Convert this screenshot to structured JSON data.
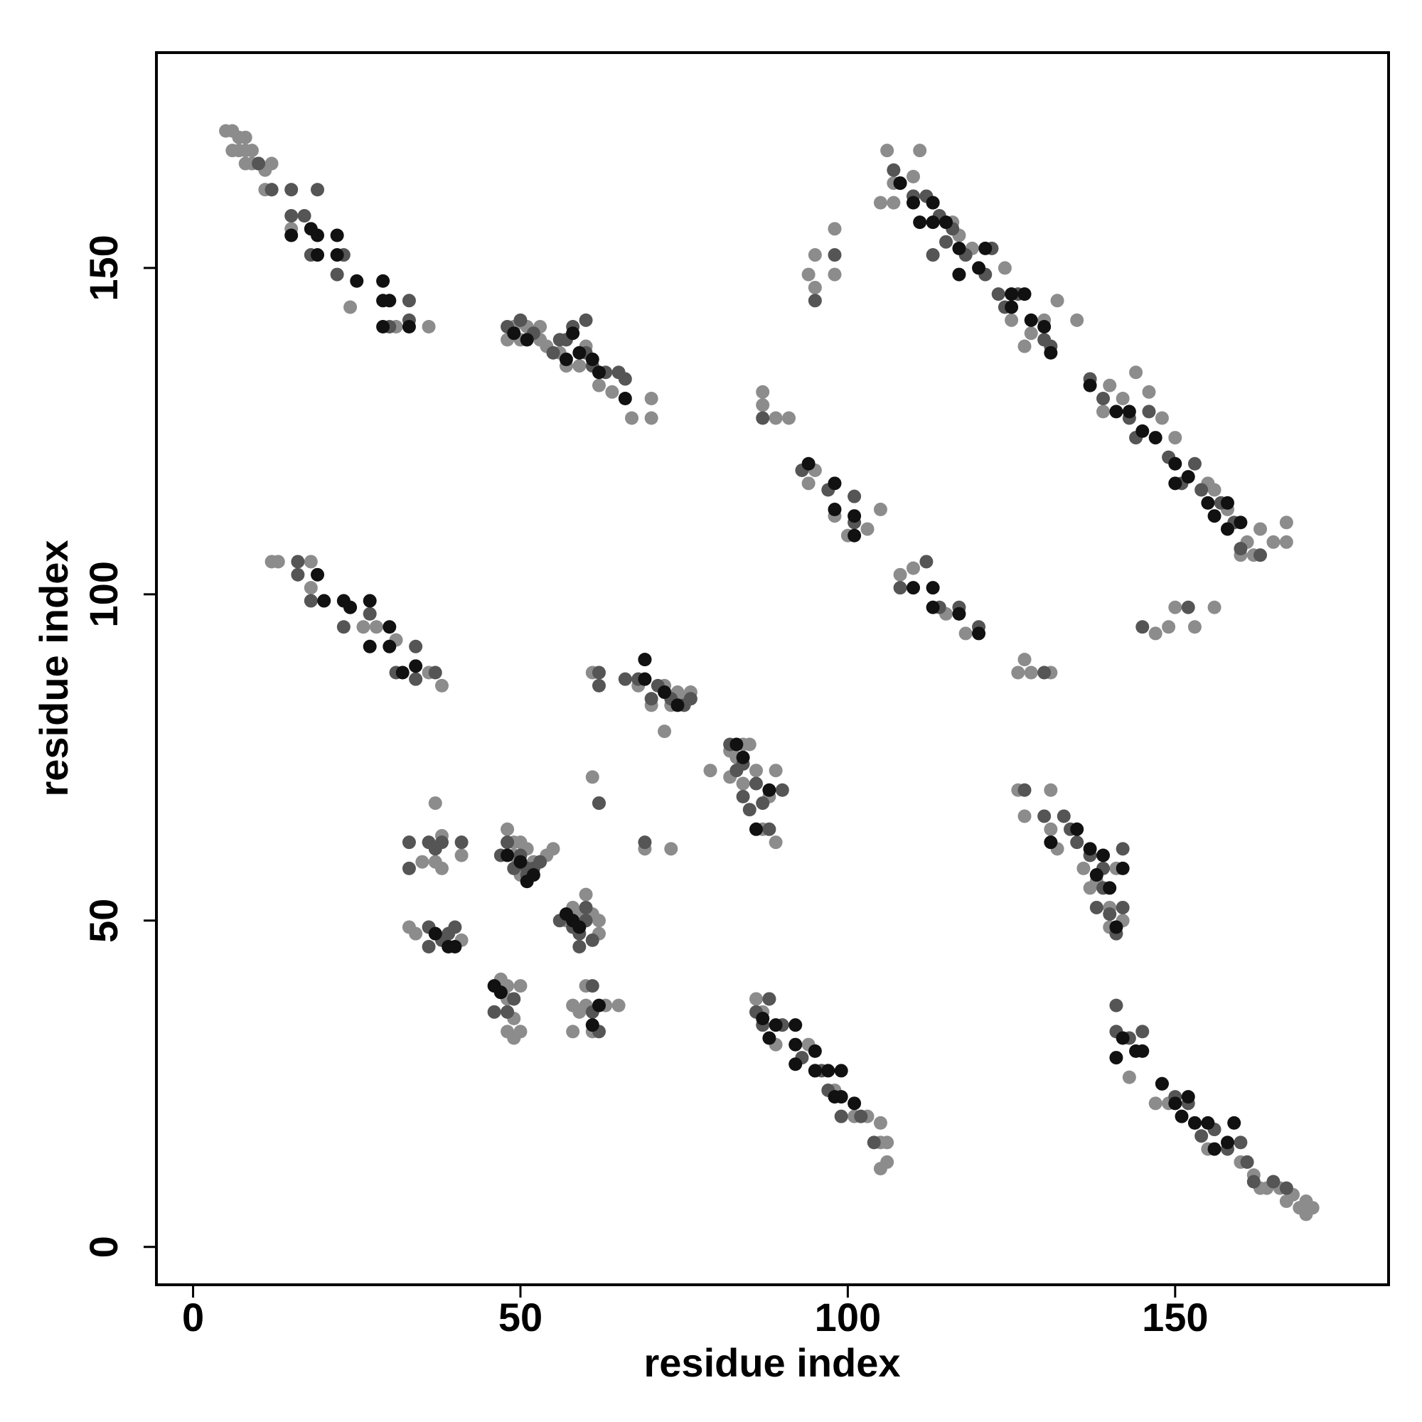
{
  "chart_data": {
    "type": "scatter",
    "x_label": "residue index",
    "y_label": "residue index",
    "xlim": [
      -5.6,
      182.6
    ],
    "ylim": [
      -5.8,
      183
    ],
    "xticks": [
      0,
      50,
      100,
      150
    ],
    "yticks": [
      0,
      50,
      100,
      150
    ],
    "grid": false,
    "series": [
      {
        "color": "#8c8c8c",
        "x": [
          5,
          6,
          7,
          8,
          6,
          7,
          8,
          9,
          10,
          11,
          12,
          8,
          11,
          15,
          24,
          31,
          36,
          9,
          12,
          48,
          49,
          51,
          53,
          53,
          54,
          56,
          57,
          59,
          60,
          62,
          64,
          67,
          70,
          70,
          50,
          106,
          107,
          105,
          107,
          111,
          110,
          113,
          116,
          117,
          119,
          124,
          125,
          128,
          130,
          132,
          135,
          140,
          142,
          144,
          146,
          148,
          150,
          155,
          158,
          161,
          163,
          165,
          167,
          167,
          160,
          162,
          156,
          139,
          127,
          94,
          98,
          100,
          103,
          105,
          110,
          115,
          118,
          95,
          108,
          94,
          95,
          95,
          98,
          98,
          87,
          87,
          89,
          91,
          147,
          149,
          150,
          153,
          156,
          127,
          128,
          131,
          126,
          12,
          13,
          18,
          18,
          28,
          31,
          36,
          38,
          26,
          61,
          69,
          72,
          74,
          75,
          76,
          70,
          72,
          68,
          73,
          79,
          82,
          84,
          85,
          83,
          86,
          88,
          89,
          87,
          89,
          82,
          84,
          126,
          127,
          131,
          131,
          132,
          136,
          138,
          140,
          140,
          142,
          137,
          141,
          33,
          34,
          35,
          37,
          37,
          38,
          38,
          41,
          37,
          41,
          48,
          49,
          50,
          51,
          52,
          54,
          55,
          49,
          50,
          60,
          58,
          59,
          60,
          61,
          62,
          62,
          57,
          61,
          62,
          69,
          73,
          65,
          47,
          48,
          50,
          48,
          49,
          50,
          49,
          48,
          58,
          58,
          59,
          60,
          60,
          61,
          63,
          86,
          87,
          88,
          89,
          94,
          95,
          98,
          101,
          103,
          105,
          105,
          105,
          106,
          106,
          143,
          147,
          149,
          153,
          155,
          160,
          162,
          163,
          164,
          166,
          167,
          168,
          170,
          171,
          170,
          169
        ],
        "values": [
          171,
          171,
          170,
          170,
          168,
          168,
          168,
          166,
          166,
          165,
          166,
          166,
          162,
          156,
          144,
          141,
          141,
          168,
          162,
          139,
          141,
          141,
          141,
          139,
          138,
          137,
          135,
          135,
          138,
          132,
          131,
          127,
          130,
          127,
          139,
          168,
          163,
          160,
          160,
          168,
          164,
          160,
          157,
          155,
          153,
          150,
          142,
          140,
          142,
          145,
          142,
          132,
          130,
          134,
          131,
          127,
          124,
          117,
          113,
          108,
          110,
          108,
          108,
          111,
          106,
          106,
          116,
          128,
          138,
          117,
          112,
          109,
          110,
          113,
          104,
          97,
          94,
          119,
          103,
          149,
          152,
          147,
          149,
          156,
          131,
          129,
          127,
          127,
          94,
          95,
          98,
          95,
          98,
          90,
          88,
          88,
          88,
          105,
          105,
          105,
          101,
          95,
          93,
          88,
          86,
          95,
          88,
          90,
          86,
          85,
          84,
          85,
          83,
          79,
          86,
          83,
          73,
          76,
          77,
          77,
          75,
          73,
          69,
          73,
          64,
          62,
          72,
          71,
          70,
          66,
          64,
          70,
          61,
          58,
          56,
          52,
          49,
          50,
          55,
          58,
          49,
          48,
          59,
          59,
          68,
          63,
          58,
          60,
          48,
          47,
          64,
          62,
          62,
          61,
          59,
          60,
          61,
          60,
          57,
          54,
          52,
          51,
          50,
          51,
          50,
          48,
          50,
          72,
          68,
          61,
          61,
          37,
          41,
          40,
          40,
          33,
          32,
          33,
          35,
          38,
          37,
          33,
          36,
          40,
          37,
          33,
          37,
          38,
          36,
          38,
          31,
          31,
          27,
          24,
          20,
          20,
          16,
          19,
          12,
          13,
          16,
          26,
          22,
          22,
          19,
          15,
          13,
          11,
          9,
          9,
          9,
          7,
          8,
          7,
          6,
          5,
          6
        ]
      },
      {
        "color": "#555555",
        "x": [
          10,
          12,
          15,
          15,
          19,
          18,
          22,
          33,
          33,
          30,
          17,
          23,
          48,
          50,
          52,
          55,
          57,
          58,
          60,
          61,
          63,
          65,
          66,
          60,
          56,
          107,
          108,
          110,
          112,
          114,
          115,
          116,
          118,
          121,
          123,
          124,
          126,
          130,
          131,
          137,
          139,
          143,
          144,
          146,
          149,
          151,
          153,
          154,
          157,
          159,
          160,
          163,
          122,
          113,
          93,
          97,
          101,
          101,
          112,
          114,
          117,
          120,
          108,
          95,
          98,
          87,
          130,
          145,
          152,
          16,
          16,
          18,
          23,
          27,
          31,
          34,
          34,
          37,
          24,
          62,
          62,
          66,
          68,
          71,
          73,
          75,
          76,
          70,
          82,
          83,
          84,
          86,
          87,
          88,
          85,
          84,
          90,
          127,
          130,
          133,
          134,
          135,
          137,
          139,
          139,
          140,
          142,
          142,
          138,
          141,
          33,
          33,
          36,
          37,
          36,
          36,
          38,
          39,
          40,
          41,
          38,
          47,
          48,
          49,
          50,
          51,
          52,
          53,
          51,
          56,
          58,
          59,
          59,
          60,
          61,
          60,
          62,
          69,
          46,
          47,
          48,
          49,
          61,
          61,
          62,
          86,
          87,
          90,
          93,
          96,
          97,
          99,
          102,
          104,
          88,
          141,
          141,
          143,
          148,
          150,
          152,
          154,
          156,
          158,
          160,
          161,
          162,
          165,
          167,
          145
        ],
        "values": [
          166,
          162,
          162,
          158,
          162,
          152,
          149,
          145,
          142,
          141,
          158,
          152,
          141,
          142,
          140,
          137,
          139,
          141,
          137,
          135,
          134,
          134,
          133,
          142,
          139,
          165,
          163,
          161,
          161,
          158,
          154,
          156,
          152,
          149,
          146,
          144,
          146,
          139,
          138,
          133,
          130,
          127,
          124,
          128,
          121,
          117,
          120,
          116,
          114,
          111,
          107,
          106,
          153,
          152,
          119,
          116,
          115,
          111,
          105,
          98,
          98,
          95,
          101,
          145,
          152,
          127,
          88,
          95,
          98,
          105,
          103,
          99,
          95,
          97,
          88,
          92,
          87,
          88,
          98,
          88,
          86,
          87,
          87,
          86,
          84,
          83,
          84,
          84,
          77,
          73,
          74,
          71,
          68,
          64,
          67,
          69,
          70,
          70,
          66,
          66,
          64,
          62,
          60,
          58,
          55,
          51,
          52,
          61,
          52,
          48,
          62,
          58,
          62,
          61,
          49,
          46,
          62,
          48,
          49,
          62,
          47,
          60,
          62,
          58,
          60,
          58,
          58,
          59,
          57,
          50,
          49,
          48,
          46,
          50,
          47,
          52,
          68,
          62,
          36,
          39,
          36,
          38,
          40,
          36,
          33,
          36,
          34,
          34,
          29,
          27,
          24,
          20,
          20,
          16,
          38,
          37,
          33,
          32,
          25,
          23,
          22,
          17,
          18,
          15,
          16,
          13,
          10,
          10,
          9,
          33
        ]
      },
      {
        "color": "#111111",
        "x": [
          15,
          18,
          19,
          19,
          22,
          22,
          25,
          29,
          29,
          29,
          30,
          33,
          49,
          51,
          58,
          59,
          61,
          62,
          66,
          57,
          108,
          110,
          111,
          113,
          113,
          115,
          117,
          117,
          120,
          121,
          125,
          125,
          127,
          128,
          131,
          137,
          141,
          143,
          145,
          147,
          150,
          152,
          155,
          156,
          158,
          158,
          160,
          150,
          130,
          94,
          98,
          98,
          101,
          101,
          110,
          113,
          113,
          117,
          120,
          19,
          20,
          23,
          24,
          27,
          27,
          30,
          30,
          34,
          32,
          69,
          69,
          72,
          74,
          83,
          84,
          88,
          86,
          131,
          135,
          137,
          138,
          139,
          140,
          141,
          142,
          39,
          40,
          37,
          48,
          50,
          51,
          52,
          57,
          58,
          59,
          46,
          47,
          62,
          61,
          87,
          88,
          89,
          92,
          92,
          92,
          95,
          95,
          97,
          99,
          99,
          98,
          101,
          141,
          142,
          144,
          145,
          148,
          150,
          152,
          153,
          155,
          156,
          158,
          159,
          151
        ],
        "values": [
          155,
          156,
          155,
          152,
          155,
          152,
          148,
          148,
          145,
          141,
          145,
          141,
          140,
          139,
          140,
          137,
          136,
          134,
          130,
          136,
          163,
          160,
          157,
          157,
          160,
          157,
          153,
          149,
          150,
          153,
          146,
          144,
          146,
          142,
          137,
          132,
          128,
          128,
          125,
          124,
          120,
          118,
          114,
          112,
          114,
          110,
          111,
          117,
          141,
          120,
          117,
          113,
          112,
          109,
          101,
          101,
          98,
          97,
          94,
          103,
          99,
          99,
          98,
          99,
          92,
          95,
          92,
          89,
          88,
          90,
          87,
          85,
          83,
          77,
          75,
          70,
          64,
          62,
          64,
          61,
          57,
          60,
          55,
          49,
          58,
          46,
          46,
          48,
          60,
          59,
          56,
          57,
          51,
          50,
          49,
          40,
          39,
          37,
          34,
          35,
          32,
          34,
          34,
          31,
          28,
          30,
          27,
          27,
          23,
          27,
          23,
          22,
          29,
          32,
          30,
          30,
          25,
          22,
          23,
          19,
          19,
          15,
          16,
          19,
          20
        ]
      }
    ]
  }
}
